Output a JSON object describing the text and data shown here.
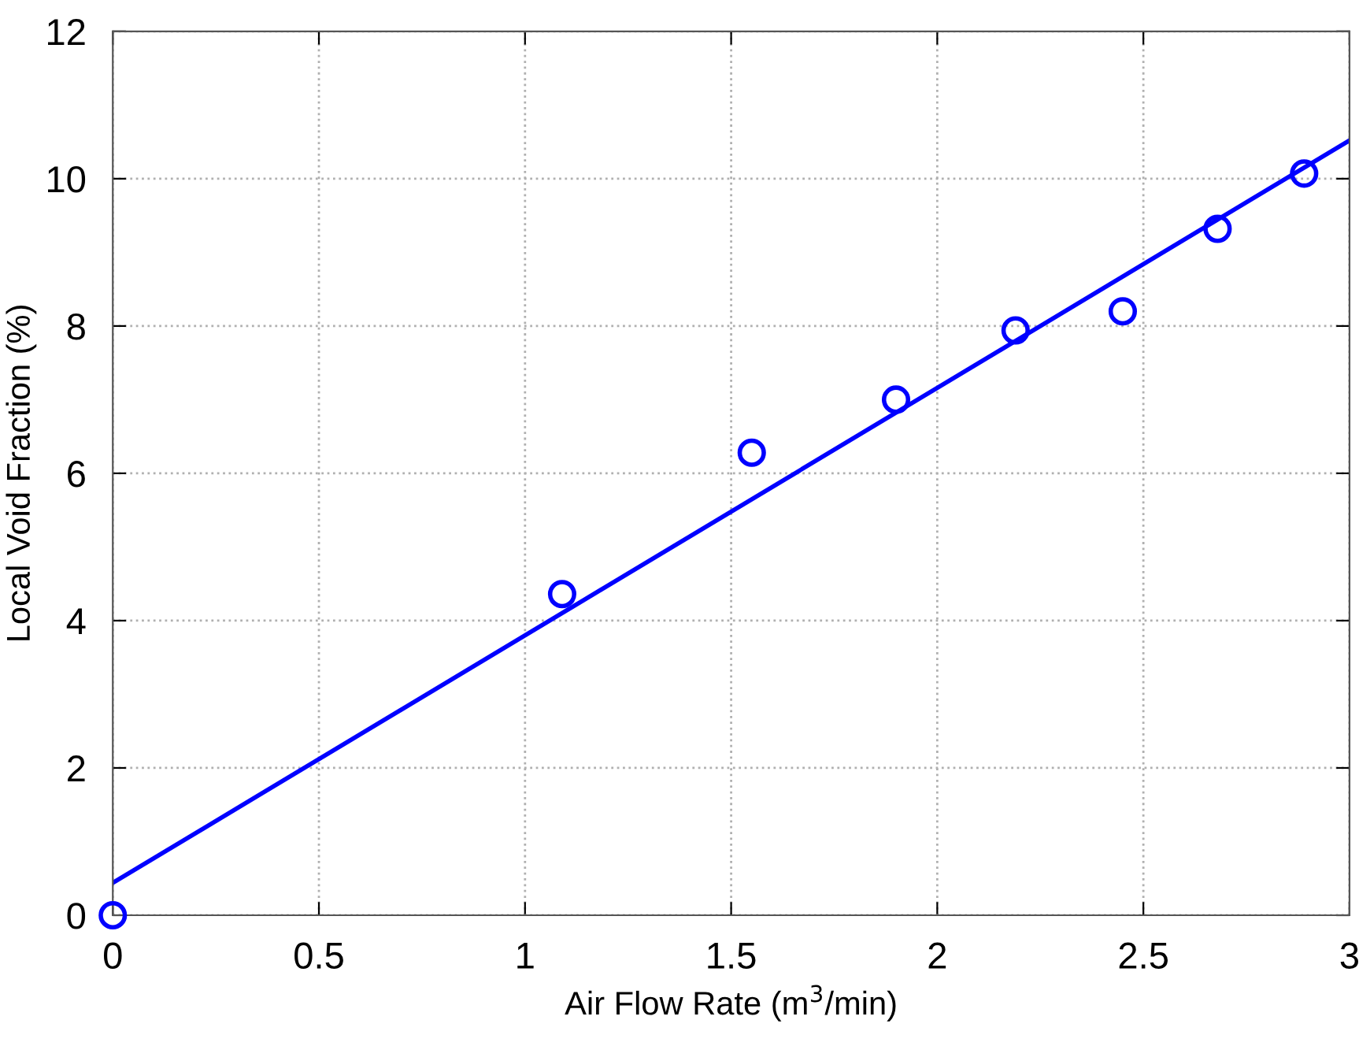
{
  "chart_data": {
    "type": "scatter",
    "xlabel": "Air Flow Rate (m$^{3}$/min)",
    "ylabel": "Local Void Fraction (%)",
    "x": [
      0,
      1.09,
      1.55,
      1.9,
      2.19,
      2.45,
      2.68,
      2.89
    ],
    "series": [
      {
        "color": "#0000ff",
        "marker": "circle",
        "values": [
          0,
          4.36,
          6.28,
          7.0,
          7.94,
          8.2,
          9.32,
          10.07
        ]
      },
      {
        "type": "line",
        "color": "#0000ff",
        "x": [
          0,
          3
        ],
        "values": [
          0.44,
          10.52
        ],
        "line_style": "solid"
      }
    ],
    "xlim": [
      0,
      3
    ],
    "ylim": [
      0,
      12
    ],
    "xticks": [
      0,
      0.5,
      1,
      1.5,
      2,
      2.5,
      3
    ],
    "yticks": [
      0,
      2,
      4,
      6,
      8,
      10,
      12
    ],
    "grid": true
  }
}
